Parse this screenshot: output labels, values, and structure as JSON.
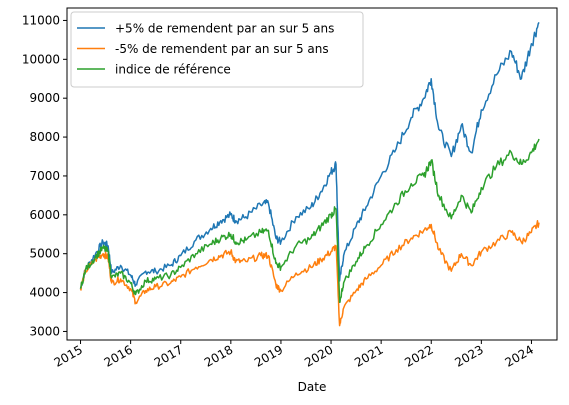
{
  "chart_data": {
    "type": "line",
    "title": "",
    "xlabel": "Date",
    "ylabel": "",
    "xlim": [
      2014.73,
      2024.51
    ],
    "ylim": [
      2780,
      11320
    ],
    "grid": false,
    "legend_position": "top-left",
    "x_ticks": [
      "2015",
      "2016",
      "2017",
      "2018",
      "2019",
      "2020",
      "2021",
      "2022",
      "2023",
      "2024"
    ],
    "y_ticks": [
      3000,
      4000,
      5000,
      6000,
      7000,
      8000,
      9000,
      10000,
      11000
    ],
    "series": [
      {
        "name": "+5% de remendent par an sur 5 ans",
        "color": "#1f77b4",
        "points": [
          [
            2015.0,
            4100
          ],
          [
            2015.1,
            4600
          ],
          [
            2015.3,
            5000
          ],
          [
            2015.45,
            5300
          ],
          [
            2015.55,
            5200
          ],
          [
            2015.62,
            4500
          ],
          [
            2015.8,
            4700
          ],
          [
            2016.0,
            4450
          ],
          [
            2016.1,
            4200
          ],
          [
            2016.3,
            4550
          ],
          [
            2016.5,
            4550
          ],
          [
            2016.8,
            4700
          ],
          [
            2017.0,
            4950
          ],
          [
            2017.3,
            5350
          ],
          [
            2017.6,
            5650
          ],
          [
            2017.8,
            5850
          ],
          [
            2018.0,
            6000
          ],
          [
            2018.1,
            5850
          ],
          [
            2018.3,
            5950
          ],
          [
            2018.6,
            6250
          ],
          [
            2018.75,
            6300
          ],
          [
            2018.9,
            5400
          ],
          [
            2019.0,
            5300
          ],
          [
            2019.3,
            5950
          ],
          [
            2019.6,
            6200
          ],
          [
            2019.8,
            6600
          ],
          [
            2020.0,
            7100
          ],
          [
            2020.1,
            7300
          ],
          [
            2020.17,
            4300
          ],
          [
            2020.25,
            4950
          ],
          [
            2020.5,
            5700
          ],
          [
            2020.7,
            6200
          ],
          [
            2021.0,
            7000
          ],
          [
            2021.3,
            7700
          ],
          [
            2021.6,
            8500
          ],
          [
            2021.85,
            9000
          ],
          [
            2022.0,
            9500
          ],
          [
            2022.15,
            8200
          ],
          [
            2022.4,
            7500
          ],
          [
            2022.6,
            8300
          ],
          [
            2022.8,
            7600
          ],
          [
            2023.0,
            8700
          ],
          [
            2023.3,
            9600
          ],
          [
            2023.6,
            10200
          ],
          [
            2023.8,
            9500
          ],
          [
            2024.0,
            10400
          ],
          [
            2024.15,
            10950
          ]
        ]
      },
      {
        "name": "-5% de remendent par an sur 5 ans",
        "color": "#ff7f0e",
        "points": [
          [
            2015.0,
            4100
          ],
          [
            2015.1,
            4550
          ],
          [
            2015.3,
            4850
          ],
          [
            2015.45,
            5000
          ],
          [
            2015.55,
            4900
          ],
          [
            2015.62,
            4250
          ],
          [
            2015.8,
            4350
          ],
          [
            2016.0,
            4100
          ],
          [
            2016.1,
            3750
          ],
          [
            2016.3,
            4050
          ],
          [
            2016.5,
            4150
          ],
          [
            2016.8,
            4250
          ],
          [
            2017.0,
            4400
          ],
          [
            2017.3,
            4650
          ],
          [
            2017.6,
            4850
          ],
          [
            2017.8,
            4950
          ],
          [
            2018.0,
            5050
          ],
          [
            2018.1,
            4800
          ],
          [
            2018.3,
            4800
          ],
          [
            2018.6,
            4950
          ],
          [
            2018.75,
            4950
          ],
          [
            2018.9,
            4200
          ],
          [
            2019.0,
            4050
          ],
          [
            2019.3,
            4500
          ],
          [
            2019.6,
            4650
          ],
          [
            2019.8,
            4850
          ],
          [
            2020.0,
            5050
          ],
          [
            2020.1,
            5200
          ],
          [
            2020.17,
            3150
          ],
          [
            2020.25,
            3600
          ],
          [
            2020.5,
            4050
          ],
          [
            2020.7,
            4350
          ],
          [
            2021.0,
            4700
          ],
          [
            2021.3,
            5100
          ],
          [
            2021.6,
            5400
          ],
          [
            2021.85,
            5600
          ],
          [
            2022.0,
            5750
          ],
          [
            2022.15,
            5100
          ],
          [
            2022.4,
            4550
          ],
          [
            2022.6,
            5000
          ],
          [
            2022.8,
            4700
          ],
          [
            2023.0,
            5050
          ],
          [
            2023.3,
            5300
          ],
          [
            2023.6,
            5550
          ],
          [
            2023.8,
            5300
          ],
          [
            2024.0,
            5550
          ],
          [
            2024.15,
            5800
          ]
        ]
      },
      {
        "name": "indice de référence",
        "color": "#2ca02c",
        "points": [
          [
            2015.0,
            4100
          ],
          [
            2015.1,
            4580
          ],
          [
            2015.3,
            4920
          ],
          [
            2015.45,
            5150
          ],
          [
            2015.55,
            5050
          ],
          [
            2015.62,
            4380
          ],
          [
            2015.8,
            4500
          ],
          [
            2016.0,
            4250
          ],
          [
            2016.1,
            3950
          ],
          [
            2016.3,
            4300
          ],
          [
            2016.5,
            4350
          ],
          [
            2016.8,
            4450
          ],
          [
            2017.0,
            4650
          ],
          [
            2017.3,
            5000
          ],
          [
            2017.6,
            5250
          ],
          [
            2017.8,
            5400
          ],
          [
            2018.0,
            5500
          ],
          [
            2018.1,
            5300
          ],
          [
            2018.3,
            5350
          ],
          [
            2018.6,
            5550
          ],
          [
            2018.75,
            5600
          ],
          [
            2018.9,
            4750
          ],
          [
            2019.0,
            4650
          ],
          [
            2019.3,
            5200
          ],
          [
            2019.6,
            5400
          ],
          [
            2019.8,
            5700
          ],
          [
            2020.0,
            6000
          ],
          [
            2020.1,
            6150
          ],
          [
            2020.17,
            3750
          ],
          [
            2020.25,
            4250
          ],
          [
            2020.5,
            4800
          ],
          [
            2020.7,
            5200
          ],
          [
            2021.0,
            5750
          ],
          [
            2021.3,
            6300
          ],
          [
            2021.6,
            6800
          ],
          [
            2021.85,
            7000
          ],
          [
            2022.0,
            7400
          ],
          [
            2022.15,
            6500
          ],
          [
            2022.4,
            5900
          ],
          [
            2022.6,
            6500
          ],
          [
            2022.8,
            6050
          ],
          [
            2023.0,
            6700
          ],
          [
            2023.3,
            7250
          ],
          [
            2023.6,
            7600
          ],
          [
            2023.8,
            7300
          ],
          [
            2024.0,
            7600
          ],
          [
            2024.15,
            7950
          ]
        ]
      }
    ]
  }
}
